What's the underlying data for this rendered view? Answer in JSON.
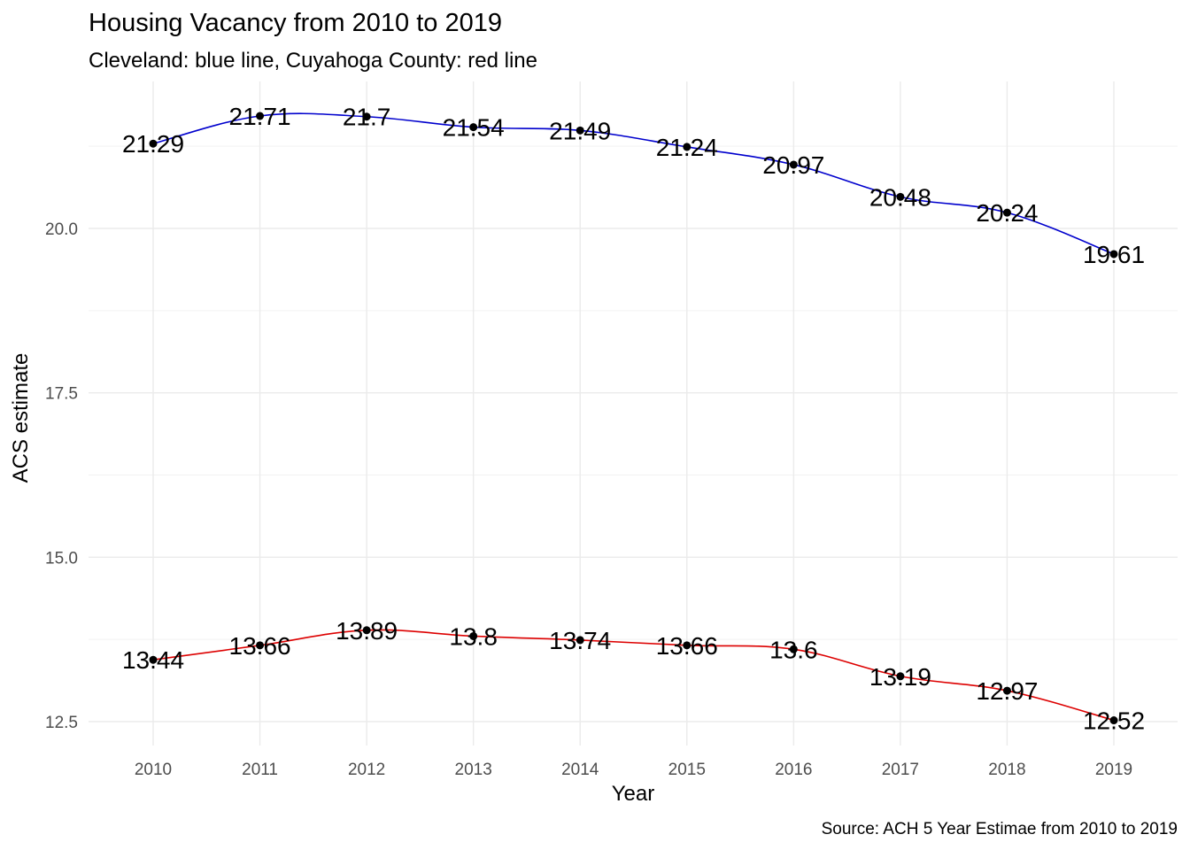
{
  "chart_data": {
    "type": "line",
    "title": "Housing Vacancy from 2010 to 2019",
    "subtitle": "Cleveland: blue line, Cuyahoga County: red line",
    "caption": "Source: ACH 5 Year Estimae from 2010 to 2019",
    "xlabel": "Year",
    "ylabel": "ACS estimate",
    "x": [
      2010,
      2011,
      2012,
      2013,
      2014,
      2015,
      2016,
      2017,
      2018,
      2019
    ],
    "x_tick_labels": [
      "2010",
      "2011",
      "2012",
      "2013",
      "2014",
      "2015",
      "2016",
      "2017",
      "2018",
      "2019"
    ],
    "y_ticks": [
      12.5,
      15.0,
      17.5,
      20.0
    ],
    "y_tick_labels": [
      "12.5",
      "15.0",
      "17.5",
      "20.0"
    ],
    "ylim": [
      12.2,
      22.25
    ],
    "grid": true,
    "legend": "none",
    "point_color": "#000000",
    "series": [
      {
        "color": "#0000cd",
        "values": [
          21.29,
          21.71,
          21.7,
          21.54,
          21.49,
          21.24,
          20.97,
          20.48,
          20.24,
          19.61
        ],
        "labels": [
          "21.29",
          "21.71",
          "21.7",
          "21.54",
          "21.49",
          "21.24",
          "20.97",
          "20.48",
          "20.24",
          "19.61"
        ]
      },
      {
        "color": "#dd0000",
        "values": [
          13.44,
          13.66,
          13.89,
          13.8,
          13.74,
          13.66,
          13.6,
          13.19,
          12.97,
          12.52
        ],
        "labels": [
          "13.44",
          "13.66",
          "13.89",
          "13.8",
          "13.74",
          "13.66",
          "13.6",
          "13.19",
          "12.97",
          "12.52"
        ]
      }
    ]
  }
}
